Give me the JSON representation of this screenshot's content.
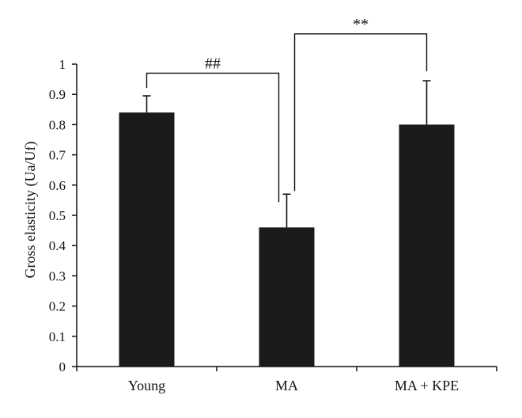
{
  "chart_data": {
    "type": "bar",
    "categories": [
      "Young",
      "MA",
      "MA + KPE"
    ],
    "values": [
      0.84,
      0.46,
      0.8
    ],
    "errors": [
      0.055,
      0.11,
      0.145
    ],
    "ylabel": "Gross elasticity (Ua/Uf)",
    "ylim": [
      0,
      1
    ],
    "yticks": [
      "0",
      "0.1",
      "0.2",
      "0.3",
      "0.4",
      "0.5",
      "0.6",
      "0.7",
      "0.8",
      "0.9",
      "1"
    ],
    "bar_color": "#1b1b19",
    "grid": false,
    "significance": [
      {
        "from": 0,
        "to": 1,
        "label": "##"
      },
      {
        "from": 1,
        "to": 2,
        "label": "**"
      }
    ]
  }
}
